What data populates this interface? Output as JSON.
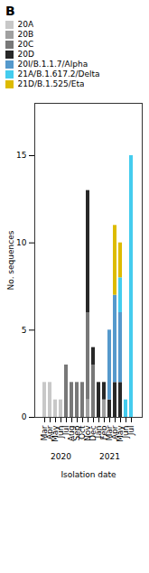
{
  "chart_data": {
    "type": "bar",
    "title": "B",
    "categories": [
      "Mar",
      "Apr",
      "May",
      "Jun",
      "Jul",
      "Aug",
      "Sep",
      "Oct",
      "Nov",
      "Dec",
      "Jan",
      "Feb",
      "Mar",
      "Apr",
      "May",
      "Jun",
      "Jul"
    ],
    "series": [
      {
        "name": "20A",
        "color": "#c8c8c8",
        "values": [
          2,
          2,
          1,
          1,
          0,
          0,
          0,
          0,
          0,
          0,
          0,
          0,
          0,
          0,
          0,
          0,
          0
        ]
      },
      {
        "name": "20B",
        "color": "#a0a0a0",
        "values": [
          0,
          0,
          0,
          0,
          0,
          0,
          0,
          0,
          1,
          0,
          0,
          1,
          0,
          0,
          0,
          0,
          0
        ]
      },
      {
        "name": "20C",
        "color": "#787878",
        "values": [
          0,
          0,
          0,
          0,
          3,
          2,
          2,
          2,
          5,
          3,
          0,
          0,
          0,
          0,
          0,
          0,
          0
        ]
      },
      {
        "name": "20D",
        "color": "#282828",
        "values": [
          0,
          0,
          0,
          0,
          0,
          0,
          0,
          0,
          7,
          1,
          2,
          1,
          1,
          2,
          2,
          0,
          0
        ]
      },
      {
        "name": "20I/B.1.1.7/Alpha",
        "color": "#5599cc",
        "values": [
          0,
          0,
          0,
          0,
          0,
          0,
          0,
          0,
          0,
          0,
          0,
          0,
          4,
          5,
          4,
          0,
          0
        ]
      },
      {
        "name": "21A/B.1.617.2/Delta",
        "color": "#44ccee",
        "values": [
          0,
          0,
          0,
          0,
          0,
          0,
          0,
          0,
          0,
          0,
          0,
          0,
          0,
          0,
          2,
          1,
          15
        ]
      },
      {
        "name": "21D/B.1.525/Eta",
        "color": "#ddbb00",
        "values": [
          0,
          0,
          0,
          0,
          0,
          0,
          0,
          0,
          0,
          0,
          0,
          0,
          0,
          4,
          2,
          0,
          0
        ]
      }
    ],
    "stacked": true,
    "xlabel": "Isolation date",
    "ylabel": "No. sequences",
    "ylim": [
      0,
      18
    ],
    "yticks": [
      0,
      5,
      10,
      15
    ],
    "annotations": [
      "2020",
      "2021"
    ]
  }
}
